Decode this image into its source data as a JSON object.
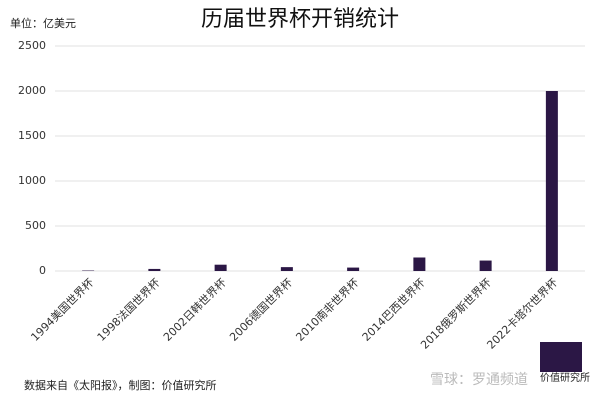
{
  "chart_data": {
    "type": "bar",
    "title": "历届世界杯开销统计",
    "unit_label": "单位：亿美元",
    "categories": [
      "1994美国世界杯",
      "1998法国世界杯",
      "2002日韩世界杯",
      "2006德国世界杯",
      "2010南非世界杯",
      "2014巴西世界杯",
      "2018俄罗斯世界杯",
      "2022卡塔尔世界杯"
    ],
    "values": [
      5,
      23,
      70,
      43,
      38,
      150,
      116,
      2000
    ],
    "color": "#2b1745",
    "ylim": [
      0,
      2500
    ],
    "yticks": [
      0,
      500,
      1000,
      1500,
      2000,
      2500
    ],
    "grid": true,
    "source": "数据来自《太阳报》，制图：价值研究所",
    "logo_text": "价值研究所",
    "watermark": "雪球：罗通频道"
  }
}
